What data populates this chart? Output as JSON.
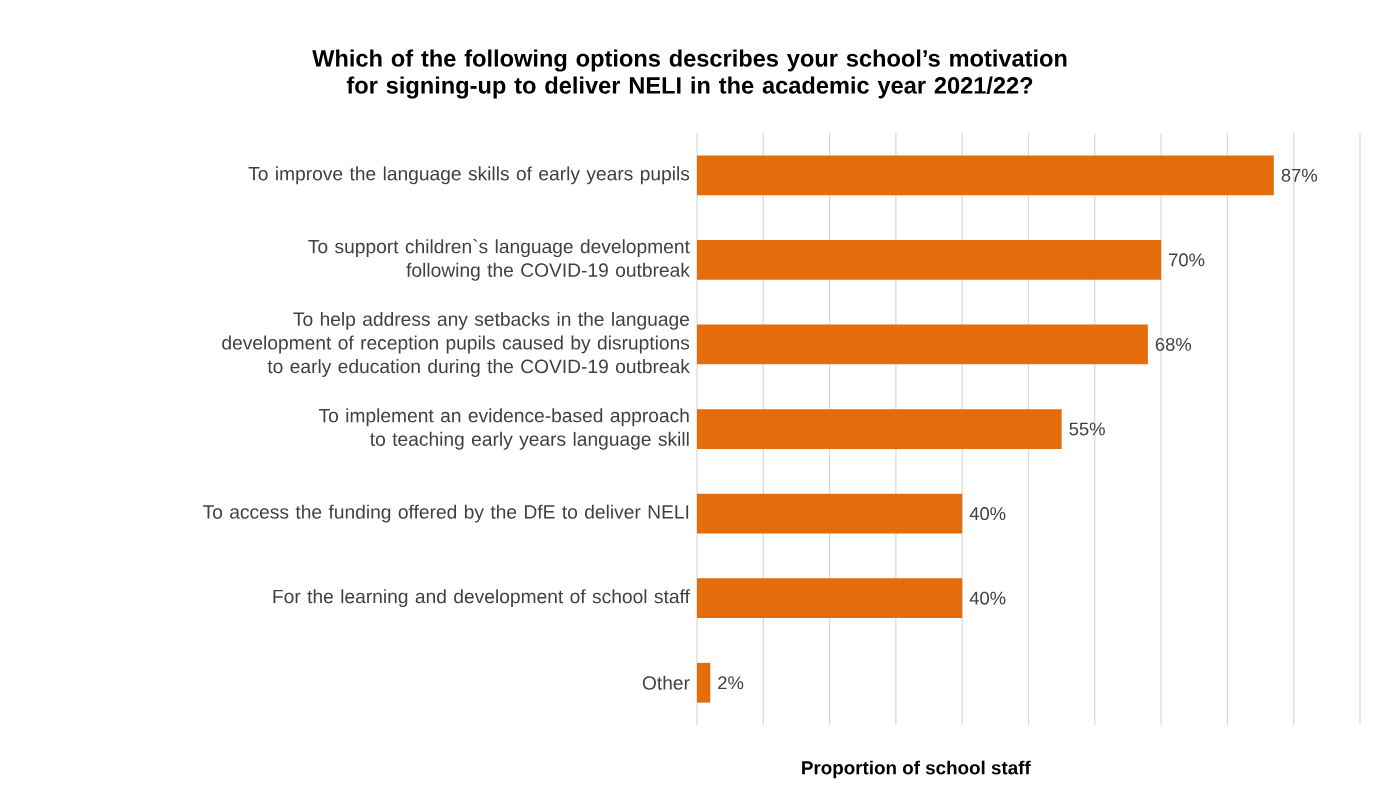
{
  "chart_data": {
    "type": "bar",
    "orientation": "horizontal",
    "title": "Which of the following options describes your school’s motivation for signing-up to deliver NELI in the academic year 2021/22?",
    "xlabel": "Proportion of school staff",
    "categories": [
      "To improve the language skills of early years pupils",
      "To support children`s language development following the COVID-19 outbreak",
      "To help address any setbacks in the language development of reception pupils caused by disruptions to early education during the COVID-19 outbreak",
      "To implement an evidence-based approach to teaching early years language skill",
      "To access the funding offered by the DfE to deliver NELI",
      "For the learning and development of school staff",
      "Other"
    ],
    "values": [
      87,
      70,
      68,
      55,
      40,
      40,
      2
    ],
    "value_labels": [
      "87%",
      "70%",
      "68%",
      "55%",
      "40%",
      "40%",
      "2%"
    ],
    "color": "#e46c0a",
    "xlim": [
      0,
      100
    ],
    "xticks": [
      {
        "value": 0,
        "label": null
      },
      {
        "value": 10,
        "label": null
      },
      {
        "value": 20,
        "label": null
      },
      {
        "value": 30,
        "label": null
      },
      {
        "value": 40,
        "label": null
      },
      {
        "value": 50,
        "label": null
      },
      {
        "value": 60,
        "label": null
      },
      {
        "value": 70,
        "label": null
      },
      {
        "value": 80,
        "label": null
      },
      {
        "value": 90,
        "label": null
      },
      {
        "value": 100,
        "label": null
      }
    ],
    "grid": "x",
    "tick_labels": "y"
  }
}
